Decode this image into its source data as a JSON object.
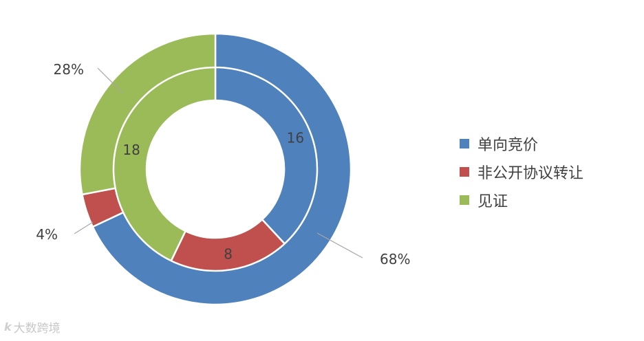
{
  "chart_data": {
    "type": "donut",
    "rings": [
      {
        "ring": "inner",
        "values": [
          16,
          8,
          18
        ],
        "labels": [
          "16",
          "8",
          "18"
        ]
      },
      {
        "ring": "outer",
        "values": [
          68,
          4,
          28
        ],
        "labels": [
          "68%",
          "4%",
          "28%"
        ]
      }
    ],
    "categories": [
      "单向竞价",
      "非公开协议转让",
      "见证"
    ],
    "colors": [
      "#4F81BD",
      "#C0504D",
      "#9BBB59"
    ],
    "legend_position": "right"
  },
  "watermark": {
    "logo": "k",
    "text": "大数跨境"
  }
}
